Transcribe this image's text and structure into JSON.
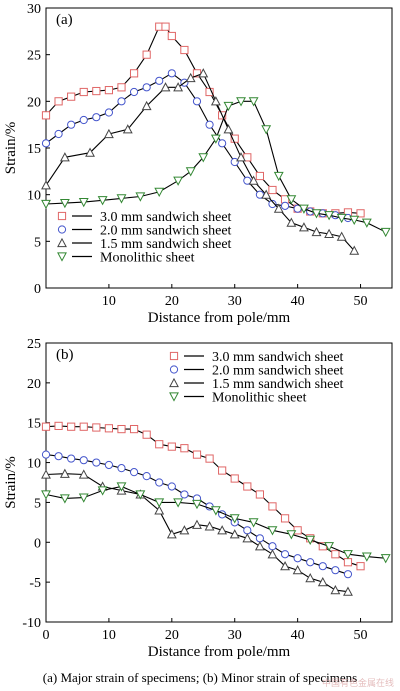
{
  "caption": "(a) Major strain of specimens; (b) Minor strain of specimens",
  "watermark": "中国有色金属在线",
  "chart_data": [
    {
      "type": "line",
      "panel_label": "(a)",
      "xlabel": "Distance from pole/mm",
      "ylabel": "Strain/%",
      "xlim": [
        0,
        55
      ],
      "ylim": [
        0,
        30
      ],
      "xticks": [
        10,
        20,
        30,
        40,
        50
      ],
      "yticks": [
        0,
        5,
        10,
        15,
        20,
        25,
        30
      ],
      "legend_position": "lower-left",
      "series": [
        {
          "name": "3.0 mm sandwich sheet",
          "marker": "square",
          "color": "#e06666",
          "x": [
            0,
            2,
            4,
            6,
            8,
            10,
            12,
            14,
            16,
            18,
            19,
            20,
            22,
            24,
            26,
            28,
            30,
            32,
            34,
            36,
            38,
            40,
            42,
            44,
            46,
            48,
            50
          ],
          "y": [
            18.5,
            20,
            20.5,
            21,
            21.1,
            21.2,
            21.5,
            23,
            25,
            28,
            28,
            27,
            25.5,
            23,
            21,
            18.5,
            16,
            14,
            12,
            10.5,
            9.5,
            8.5,
            8.2,
            8,
            8,
            8.1,
            8
          ]
        },
        {
          "name": "2.0 mm sandwich sheet",
          "marker": "circle",
          "color": "#4455cc",
          "x": [
            0,
            2,
            4,
            6,
            8,
            10,
            12,
            14,
            16,
            18,
            20,
            22,
            24,
            26,
            28,
            30,
            32,
            34,
            36,
            38,
            40,
            42,
            44,
            46,
            48
          ],
          "y": [
            15.5,
            16.5,
            17.5,
            18,
            18.3,
            18.8,
            20,
            21,
            21.5,
            22.2,
            23,
            22,
            20,
            17.5,
            15.5,
            13.5,
            11.5,
            10,
            9,
            8.8,
            8.5,
            8.2,
            8,
            7.8,
            7.5
          ]
        },
        {
          "name": "1.5 mm sandwich sheet",
          "marker": "triangle-up",
          "color": "#444444",
          "x": [
            0,
            3,
            7,
            10,
            13,
            16,
            19,
            21,
            23,
            25,
            27,
            29,
            31,
            33,
            35,
            37,
            39,
            41,
            43,
            45,
            47,
            49
          ],
          "y": [
            11,
            14,
            14.5,
            16.5,
            17,
            19.5,
            21.5,
            21.5,
            22.5,
            23,
            20,
            17,
            14,
            11.5,
            10,
            8.5,
            7,
            6.5,
            6,
            5.8,
            5.5,
            4
          ]
        },
        {
          "name": "Monolithic sheet",
          "marker": "triangle-down",
          "color": "#338833",
          "x": [
            0,
            3,
            6,
            9,
            12,
            15,
            18,
            21,
            23,
            25,
            27,
            29,
            31,
            33,
            35,
            37,
            39,
            41,
            43,
            45,
            47,
            49,
            51,
            54
          ],
          "y": [
            9,
            9.1,
            9.2,
            9.4,
            9.6,
            9.8,
            10.3,
            11.5,
            12.5,
            14,
            16,
            19.5,
            20,
            20,
            17,
            12,
            9.5,
            8.5,
            8,
            7.8,
            7.5,
            7.3,
            7,
            6
          ]
        }
      ]
    },
    {
      "type": "line",
      "panel_label": "(b)",
      "xlabel": "Distance from pole/mm",
      "ylabel": "Strain/%",
      "xlim": [
        0,
        55
      ],
      "ylim": [
        -10,
        25
      ],
      "xticks": [
        0,
        10,
        20,
        30,
        40,
        50
      ],
      "yticks": [
        -10,
        -5,
        0,
        5,
        10,
        15,
        20,
        25
      ],
      "legend_position": "top-right",
      "series": [
        {
          "name": "3.0 mm sandwich sheet",
          "marker": "square",
          "color": "#e06666",
          "x": [
            0,
            2,
            4,
            6,
            8,
            10,
            12,
            14,
            16,
            18,
            20,
            22,
            24,
            26,
            28,
            30,
            32,
            34,
            36,
            38,
            40,
            42,
            44,
            46,
            48,
            50
          ],
          "y": [
            14.5,
            14.6,
            14.5,
            14.5,
            14.4,
            14.3,
            14.2,
            14.2,
            13.5,
            12.3,
            12,
            11.8,
            11,
            10.5,
            9,
            8,
            7,
            6,
            4.5,
            3,
            1.5,
            0.5,
            -0.5,
            -1.5,
            -2.5,
            -3
          ]
        },
        {
          "name": "2.0 mm sandwich sheet",
          "marker": "circle",
          "color": "#4455cc",
          "x": [
            0,
            2,
            4,
            6,
            8,
            10,
            12,
            14,
            16,
            18,
            20,
            22,
            24,
            26,
            28,
            30,
            32,
            34,
            36,
            38,
            40,
            42,
            44,
            46,
            48
          ],
          "y": [
            11,
            10.8,
            10.5,
            10.3,
            10,
            9.7,
            9.3,
            8.8,
            8.3,
            7.5,
            7,
            6,
            5.5,
            4.5,
            3.5,
            2.5,
            1.5,
            0.5,
            -0.5,
            -1.5,
            -2,
            -2.5,
            -3,
            -3.5,
            -4
          ]
        },
        {
          "name": "1.5 mm sandwich sheet",
          "marker": "triangle-up",
          "color": "#444444",
          "x": [
            0,
            3,
            6,
            9,
            12,
            15,
            18,
            20,
            22,
            24,
            26,
            28,
            30,
            32,
            34,
            36,
            38,
            40,
            42,
            44,
            46,
            48
          ],
          "y": [
            8.5,
            8.6,
            8.5,
            7,
            6.5,
            6,
            4,
            1,
            1.5,
            2.2,
            2,
            1.5,
            1,
            0.5,
            -0.5,
            -1.5,
            -3,
            -3.5,
            -4.5,
            -5,
            -6,
            -6.2
          ]
        },
        {
          "name": "Monolithic sheet",
          "marker": "triangle-down",
          "color": "#338833",
          "x": [
            0,
            3,
            6,
            9,
            12,
            15,
            18,
            21,
            24,
            27,
            30,
            33,
            36,
            39,
            42,
            45,
            48,
            51,
            54
          ],
          "y": [
            6,
            5.5,
            5.6,
            6.5,
            7,
            6,
            5,
            5,
            4.8,
            4,
            3,
            2.5,
            1.5,
            1,
            0.3,
            -0.5,
            -1.5,
            -1.8,
            -2
          ]
        }
      ]
    }
  ]
}
